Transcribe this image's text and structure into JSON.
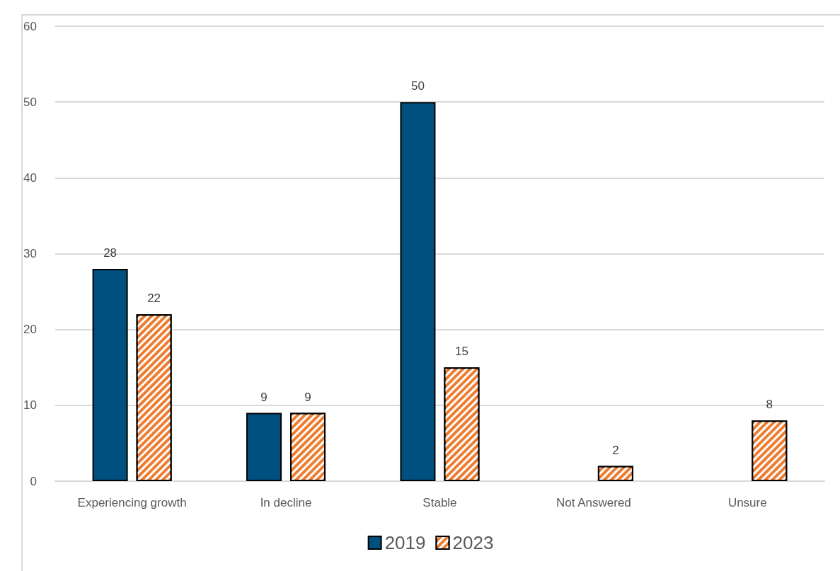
{
  "chart_data": {
    "type": "bar",
    "categories": [
      "Experiencing growth",
      "In decline",
      "Stable",
      "Not Answered",
      "Unsure"
    ],
    "series": [
      {
        "name": "2019",
        "color": "#00507f",
        "values": [
          28,
          9,
          50,
          null,
          null
        ]
      },
      {
        "name": "2023",
        "color": "#ed7d31",
        "values": [
          22,
          9,
          15,
          2,
          8
        ]
      }
    ],
    "ylim": [
      0,
      60
    ],
    "yticks": [
      0,
      10,
      20,
      30,
      40,
      50,
      60
    ],
    "grid": "y",
    "legend": "bottom",
    "data_labels": true
  }
}
